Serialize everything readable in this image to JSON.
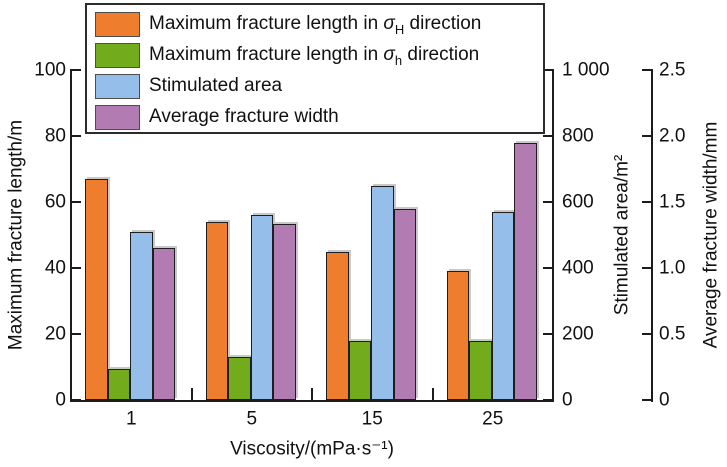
{
  "chart_data": {
    "type": "bar",
    "categories": [
      "1",
      "5",
      "15",
      "25"
    ],
    "xlabel": "Viscosity/(mPa·s⁻¹)",
    "grid": false,
    "legend_position": "top-inside",
    "axes": {
      "left": {
        "label": "Maximum fracture length/m",
        "min": 0,
        "max": 100,
        "ticks": [
          "0",
          "20",
          "40",
          "60",
          "80",
          "100"
        ]
      },
      "right1": {
        "label": "Stimulated area/m²",
        "min": 0,
        "max": 1000,
        "ticks": [
          "0",
          "200",
          "400",
          "600",
          "800",
          "1 000"
        ]
      },
      "right2": {
        "label": "Average fracture width/mm",
        "min": 0,
        "max": 2.5,
        "ticks": [
          "0",
          "0.5",
          "1.0",
          "1.5",
          "2.0",
          "2.5"
        ]
      }
    },
    "series": [
      {
        "key": "max-length-sigmaH",
        "name": "Maximum fracture length in σH direction",
        "axis": "left",
        "unit": "m",
        "color": "#ee7e2e",
        "values": [
          67,
          54,
          45,
          39
        ]
      },
      {
        "key": "max-length-sigmah",
        "name": "Maximum fracture length in σh direction",
        "axis": "left",
        "unit": "m",
        "color": "#72ac1d",
        "values": [
          9.5,
          13,
          18,
          18
        ]
      },
      {
        "key": "stimulated-area",
        "name": "Stimulated area",
        "axis": "right1",
        "unit": "m²",
        "color": "#95bfea",
        "values": [
          510,
          560,
          650,
          570
        ]
      },
      {
        "key": "avg-fracture-width",
        "name": "Average fracture width",
        "axis": "right2",
        "unit": "mm",
        "color": "#b27cb2",
        "values": [
          1.15,
          1.33,
          1.45,
          1.95
        ]
      }
    ]
  },
  "legend": {
    "items": [
      {
        "text_before": "Maximum fracture length in ",
        "symbol": "σ",
        "subscript": "H",
        "text_after": " direction"
      },
      {
        "text_before": "Maximum fracture length in ",
        "symbol": "σ",
        "subscript": "h",
        "text_after": " direction"
      },
      {
        "text_before": "Stimulated area",
        "symbol": "",
        "subscript": "",
        "text_after": ""
      },
      {
        "text_before": "Average fracture width",
        "symbol": "",
        "subscript": "",
        "text_after": ""
      }
    ]
  }
}
